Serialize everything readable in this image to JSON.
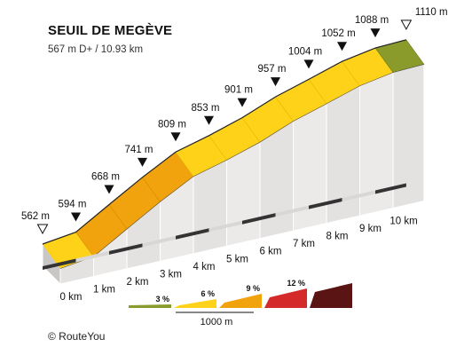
{
  "chart_data": {
    "type": "area",
    "title": "SEUIL DE MEGÈVE",
    "subtitle": "567 m D+ / 10.93 km",
    "x_unit": "km",
    "points": [
      {
        "km": 0,
        "label": "0 km",
        "elev": 562,
        "elev_label": "562 m",
        "marker": "start"
      },
      {
        "km": 1,
        "label": "1 km",
        "elev": 594,
        "elev_label": "594 m",
        "marker": "km"
      },
      {
        "km": 2,
        "label": "2 km",
        "elev": 668,
        "elev_label": "668 m",
        "marker": "km"
      },
      {
        "km": 3,
        "label": "3 km",
        "elev": 741,
        "elev_label": "741 m",
        "marker": "km"
      },
      {
        "km": 4,
        "label": "4 km",
        "elev": 809,
        "elev_label": "809 m",
        "marker": "km"
      },
      {
        "km": 5,
        "label": "5 km",
        "elev": 853,
        "elev_label": "853 m",
        "marker": "km"
      },
      {
        "km": 6,
        "label": "6 km",
        "elev": 901,
        "elev_label": "901 m",
        "marker": "km"
      },
      {
        "km": 7,
        "label": "7 km",
        "elev": 957,
        "elev_label": "957 m",
        "marker": "km"
      },
      {
        "km": 8,
        "label": "8 km",
        "elev": 1004,
        "elev_label": "1004 m",
        "marker": "km"
      },
      {
        "km": 9,
        "label": "9 km",
        "elev": 1052,
        "elev_label": "1052 m",
        "marker": "km"
      },
      {
        "km": 10,
        "label": "10 km",
        "elev": 1088,
        "elev_label": "1088 m",
        "marker": "km"
      },
      {
        "km": 10.93,
        "label": "",
        "elev": 1110,
        "elev_label": "1110 m",
        "marker": "end"
      }
    ],
    "segment_grade_class": [
      1,
      2,
      2,
      2,
      1,
      1,
      1,
      1,
      1,
      1,
      0
    ],
    "legend": {
      "items": [
        {
          "label": "3 %",
          "color": "#8a9a2b"
        },
        {
          "label": "6 %",
          "color": "#ffd21a"
        },
        {
          "label": "9 %",
          "color": "#f0a30c"
        },
        {
          "label": "12 %",
          "color": "#d42a2a"
        },
        {
          "label": "",
          "color": "#5a1414"
        }
      ],
      "scale_label": "1000 m"
    }
  },
  "copyright": "© RouteYou"
}
